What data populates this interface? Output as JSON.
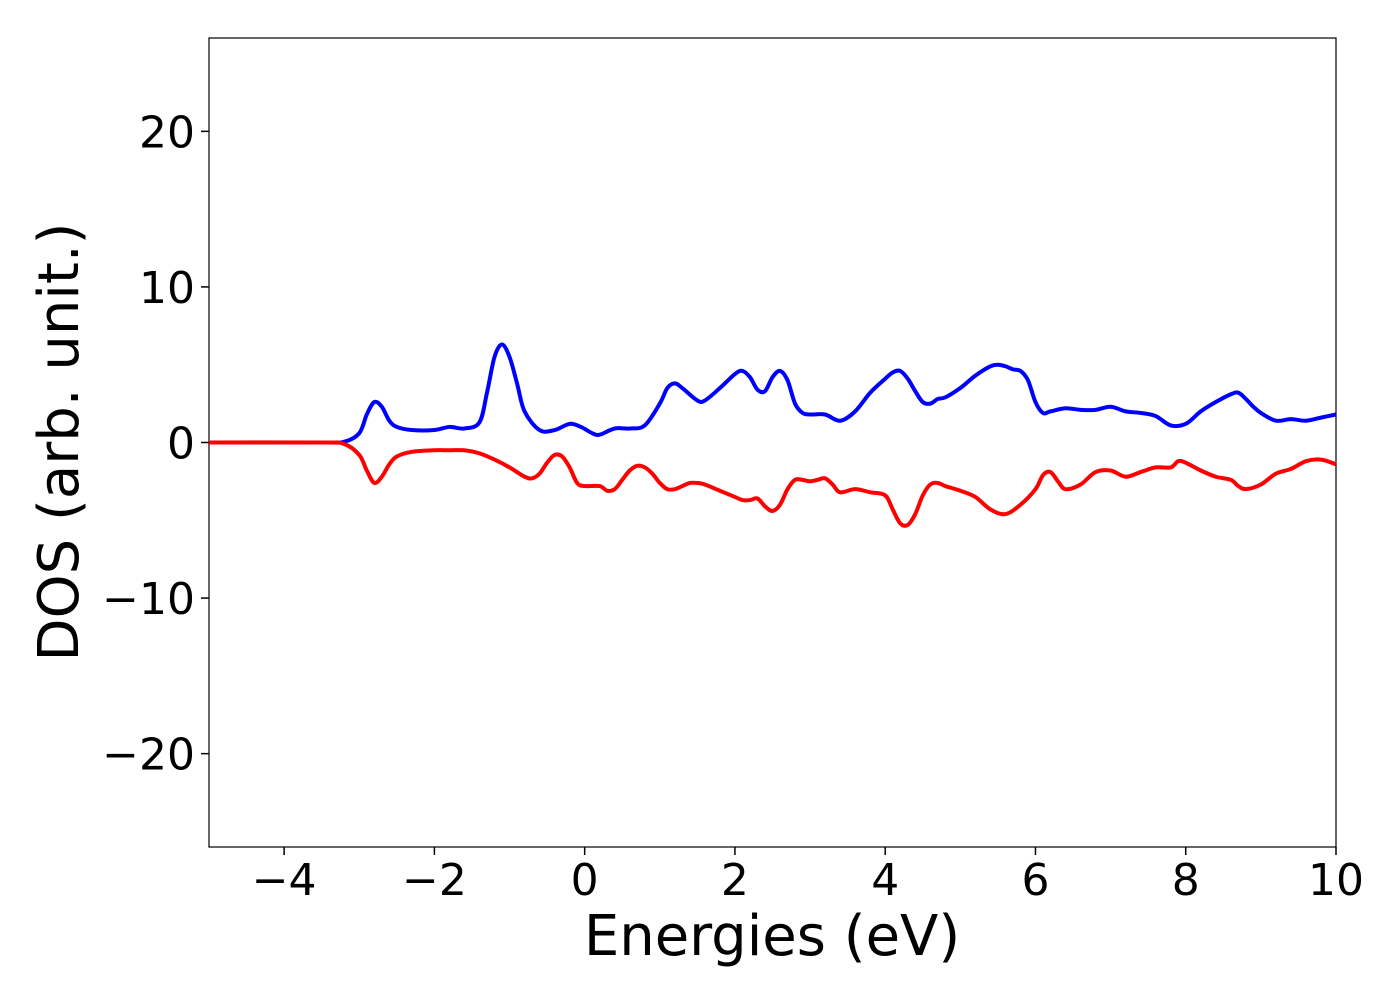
{
  "chart_data": {
    "type": "line",
    "title": "",
    "xlabel": "Energies (eV)",
    "ylabel": "DOS (arb. unit.)",
    "xlim": [
      -5,
      10
    ],
    "ylim": [
      -26,
      26
    ],
    "x_ticks": [
      -4,
      -2,
      0,
      2,
      4,
      6,
      8,
      10
    ],
    "x_tick_labels": [
      "−4",
      "−2",
      "0",
      "2",
      "4",
      "6",
      "8",
      "10"
    ],
    "y_ticks": [
      20,
      10,
      0,
      -10,
      -20
    ],
    "y_tick_labels": [
      "20",
      "10",
      "0",
      "−10",
      "−20"
    ],
    "grid": false,
    "legend": "none",
    "series": [
      {
        "color": "#0000ff",
        "x": [
          -5.0,
          -3.5,
          -3.2,
          -3.0,
          -2.9,
          -2.8,
          -2.7,
          -2.6,
          -2.5,
          -2.3,
          -2.0,
          -1.8,
          -1.6,
          -1.4,
          -1.3,
          -1.2,
          -1.1,
          -1.0,
          -0.9,
          -0.8,
          -0.6,
          -0.4,
          -0.2,
          -0.05,
          0.1,
          0.2,
          0.4,
          0.6,
          0.8,
          1.0,
          1.1,
          1.2,
          1.3,
          1.5,
          1.6,
          1.8,
          2.0,
          2.1,
          2.2,
          2.3,
          2.4,
          2.5,
          2.6,
          2.7,
          2.8,
          2.9,
          3.0,
          3.2,
          3.4,
          3.6,
          3.8,
          4.0,
          4.1,
          4.2,
          4.3,
          4.4,
          4.5,
          4.6,
          4.7,
          4.8,
          5.0,
          5.2,
          5.4,
          5.5,
          5.6,
          5.7,
          5.8,
          5.9,
          6.0,
          6.1,
          6.2,
          6.4,
          6.6,
          6.8,
          7.0,
          7.2,
          7.4,
          7.6,
          7.8,
          8.0,
          8.2,
          8.4,
          8.6,
          8.7,
          8.8,
          8.9,
          9.0,
          9.2,
          9.4,
          9.6,
          9.8,
          10.0
        ],
        "y": [
          0.0,
          0.0,
          0.05,
          0.6,
          1.8,
          2.6,
          2.3,
          1.4,
          1.0,
          0.8,
          0.8,
          1.0,
          0.9,
          1.3,
          3.2,
          5.5,
          6.3,
          5.5,
          3.8,
          2.0,
          0.8,
          0.8,
          1.2,
          1.0,
          0.6,
          0.5,
          0.9,
          0.9,
          1.1,
          2.5,
          3.5,
          3.8,
          3.5,
          2.7,
          2.7,
          3.5,
          4.4,
          4.6,
          4.2,
          3.4,
          3.3,
          4.2,
          4.6,
          4.0,
          2.5,
          1.9,
          1.8,
          1.8,
          1.4,
          2.0,
          3.2,
          4.1,
          4.5,
          4.6,
          4.1,
          3.3,
          2.6,
          2.5,
          2.8,
          2.9,
          3.5,
          4.3,
          4.9,
          5.0,
          4.9,
          4.7,
          4.6,
          4.0,
          2.6,
          1.9,
          2.0,
          2.2,
          2.1,
          2.1,
          2.3,
          2.0,
          1.9,
          1.7,
          1.1,
          1.2,
          2.0,
          2.6,
          3.1,
          3.2,
          2.8,
          2.3,
          1.9,
          1.4,
          1.5,
          1.4,
          1.6,
          1.8
        ]
      },
      {
        "color": "#ff0000",
        "x": [
          -5.0,
          -3.5,
          -3.2,
          -3.0,
          -2.9,
          -2.8,
          -2.7,
          -2.6,
          -2.5,
          -2.3,
          -2.0,
          -1.8,
          -1.6,
          -1.4,
          -1.2,
          -1.0,
          -0.8,
          -0.7,
          -0.6,
          -0.5,
          -0.4,
          -0.3,
          -0.2,
          -0.1,
          0.0,
          0.2,
          0.3,
          0.4,
          0.5,
          0.6,
          0.7,
          0.8,
          0.9,
          1.0,
          1.1,
          1.2,
          1.3,
          1.4,
          1.5,
          1.6,
          1.8,
          2.0,
          2.1,
          2.2,
          2.3,
          2.4,
          2.5,
          2.6,
          2.7,
          2.8,
          2.9,
          3.0,
          3.1,
          3.2,
          3.3,
          3.4,
          3.6,
          3.8,
          4.0,
          4.1,
          4.2,
          4.3,
          4.4,
          4.5,
          4.6,
          4.7,
          4.8,
          5.0,
          5.2,
          5.4,
          5.6,
          5.8,
          6.0,
          6.1,
          6.2,
          6.3,
          6.4,
          6.6,
          6.8,
          7.0,
          7.2,
          7.4,
          7.6,
          7.8,
          7.9,
          8.0,
          8.2,
          8.4,
          8.6,
          8.7,
          8.8,
          9.0,
          9.2,
          9.4,
          9.6,
          9.8,
          10.0
        ],
        "y": [
          0.0,
          0.0,
          -0.1,
          -0.8,
          -1.8,
          -2.6,
          -2.2,
          -1.4,
          -0.9,
          -0.6,
          -0.5,
          -0.5,
          -0.5,
          -0.7,
          -1.1,
          -1.6,
          -2.2,
          -2.3,
          -2.0,
          -1.3,
          -0.8,
          -0.9,
          -1.6,
          -2.6,
          -2.8,
          -2.8,
          -3.1,
          -3.0,
          -2.4,
          -1.8,
          -1.5,
          -1.6,
          -2.0,
          -2.6,
          -3.0,
          -3.0,
          -2.8,
          -2.6,
          -2.6,
          -2.7,
          -3.1,
          -3.5,
          -3.7,
          -3.7,
          -3.6,
          -4.1,
          -4.4,
          -4.0,
          -3.0,
          -2.4,
          -2.4,
          -2.5,
          -2.4,
          -2.3,
          -2.7,
          -3.2,
          -3.0,
          -3.2,
          -3.4,
          -4.3,
          -5.2,
          -5.3,
          -4.6,
          -3.4,
          -2.7,
          -2.6,
          -2.8,
          -3.1,
          -3.5,
          -4.3,
          -4.6,
          -4.0,
          -3.0,
          -2.1,
          -1.9,
          -2.5,
          -3.0,
          -2.7,
          -1.9,
          -1.8,
          -2.2,
          -1.9,
          -1.6,
          -1.6,
          -1.2,
          -1.3,
          -1.8,
          -2.2,
          -2.4,
          -2.8,
          -3.0,
          -2.7,
          -2.0,
          -1.7,
          -1.2,
          -1.1,
          -1.4
        ]
      }
    ]
  }
}
